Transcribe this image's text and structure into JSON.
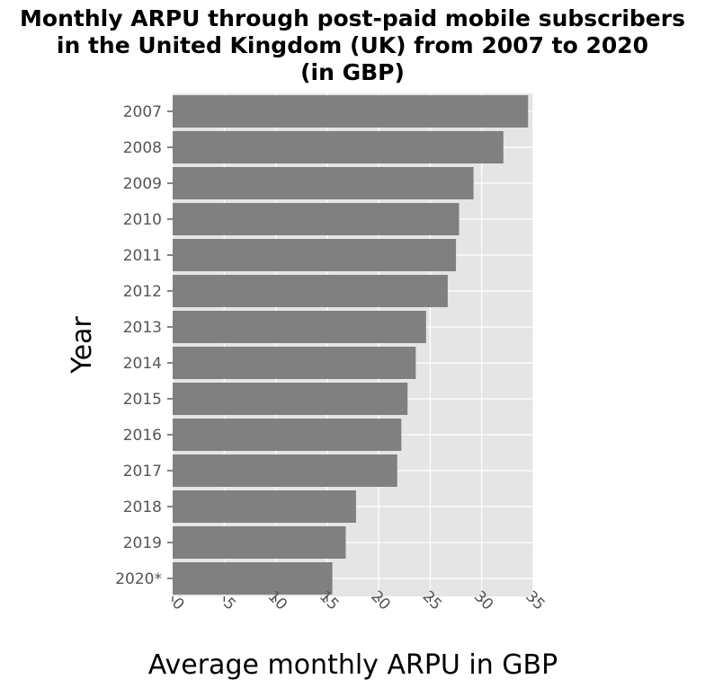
{
  "chart_data": {
    "type": "bar",
    "orientation": "horizontal",
    "title_lines": [
      "Monthly ARPU through post-paid mobile subscribers",
      "in the United Kingdom (UK) from 2007 to 2020",
      "(in GBP)"
    ],
    "xlabel": "Average monthly ARPU in GBP",
    "ylabel": "Year",
    "categories": [
      "2007",
      "2008",
      "2009",
      "2010",
      "2011",
      "2012",
      "2013",
      "2014",
      "2015",
      "2016",
      "2017",
      "2018",
      "2019",
      "2020*"
    ],
    "values": [
      34.5,
      32.1,
      29.2,
      27.8,
      27.5,
      26.7,
      24.6,
      23.6,
      22.8,
      22.2,
      21.8,
      17.8,
      16.8,
      15.5
    ],
    "xlim": [
      0,
      35
    ],
    "xticks": [
      "0",
      "5",
      "10",
      "15",
      "20",
      "25",
      "30",
      "35"
    ],
    "grid": true,
    "colors": {
      "bar": "#808080",
      "panel": "#e5e5e5",
      "grid": "#ffffff"
    }
  }
}
